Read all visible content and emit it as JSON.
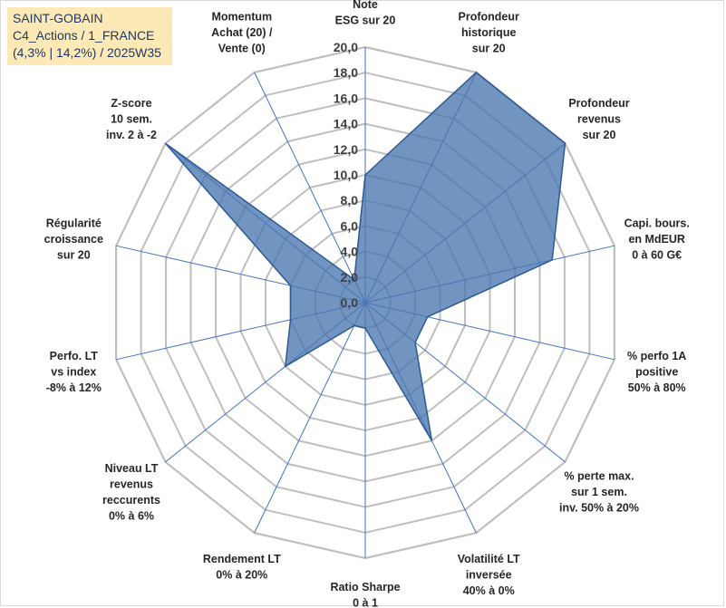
{
  "header": {
    "line1": "SAINT-GOBAIN",
    "line2": "C4_Actions / 1_FRANCE",
    "line3": "(4,3% | 14,2%) / 2025W35"
  },
  "chart_data": {
    "type": "radar",
    "title": "",
    "rmin": 0,
    "rmax": 20,
    "ticks": [
      "0,0",
      "2,0",
      "4,0",
      "6,0",
      "8,0",
      "10,0",
      "12,0",
      "14,0",
      "16,0",
      "18,0",
      "20,0"
    ],
    "grid": true,
    "categories": [
      [
        "Note",
        "ESG sur 20"
      ],
      [
        "Profondeur",
        "historique",
        "sur 20"
      ],
      [
        "Profondeur",
        "revenus",
        "sur 20"
      ],
      [
        "Capi. bours.",
        "en MdEUR",
        "0 à 60 G€"
      ],
      [
        "% perfo 1A",
        "positive",
        "50% à 80%"
      ],
      [
        "% perte max.",
        "sur 1 sem.",
        "inv. 50% à 20%"
      ],
      [
        "Volatilité LT",
        "inversée",
        "40% à 0%"
      ],
      [
        "Ratio Sharpe",
        "0 à 1"
      ],
      [
        "Rendement LT",
        "0% à 20%"
      ],
      [
        "Niveau LT",
        "revenus",
        "reccurents",
        "0% à 6%"
      ],
      [
        "Perfo. LT",
        "vs index",
        "-8% à 12%"
      ],
      [
        "Régularité",
        "croissance",
        "sur 20"
      ],
      [
        "Z-score",
        "10 sem.",
        "inv. 2 à -2"
      ],
      [
        "Momentum",
        "Achat (20) /",
        "Vente (0)"
      ]
    ],
    "series": [
      {
        "values": [
          10,
          20,
          20,
          15,
          5,
          5,
          12,
          2,
          2,
          8,
          6,
          6,
          20,
          2
        ]
      }
    ],
    "colors": {
      "fill": "#4a76b0",
      "stroke": "#2e5a94",
      "grid": "#bfbfbf",
      "spoke": "#4472c4"
    }
  }
}
